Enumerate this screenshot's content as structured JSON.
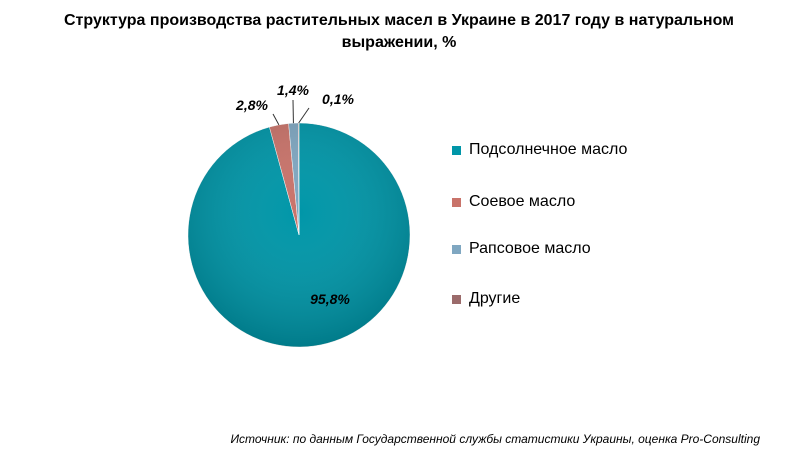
{
  "chart_data": {
    "type": "pie",
    "title_lines": [
      "Структура производства растительных масел в Украине в 2017 году в натуральном",
      "выражении, %"
    ],
    "categories": [
      "Подсолнечное масло",
      "Соевое масло",
      "Рапсовое масло",
      "Другие"
    ],
    "values": [
      95.8,
      2.8,
      1.4,
      0.1
    ],
    "data_labels": [
      "95,8%",
      "2,8%",
      "1,4%",
      "0,1%"
    ],
    "colors": [
      "#0096A8",
      "#C9736A",
      "#7FA7C1",
      "#9B6B6B"
    ],
    "legend_position": "right"
  },
  "source": "Источник: по данным Государственной службы статистики Украины, оценка Pro-Consulting"
}
